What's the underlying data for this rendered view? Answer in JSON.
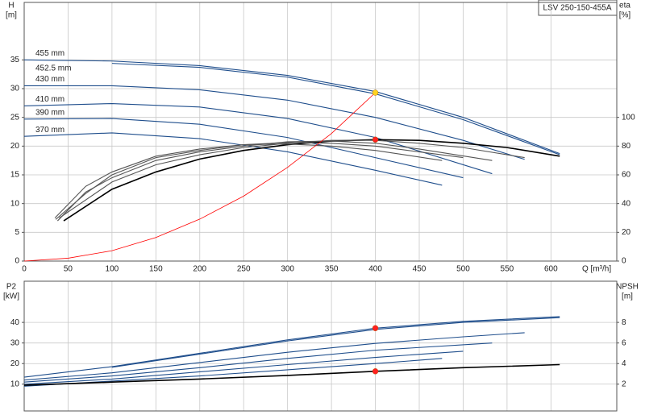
{
  "chart_data": [
    {
      "type": "line",
      "title": "LSV 250-150-455A",
      "ylabel": "H",
      "yunit": "[m]",
      "y2label": "eta",
      "y2unit": "[%]",
      "xlabel": "Q [m³/h]",
      "xlim": [
        0,
        675
      ],
      "xticks": [
        0,
        50,
        100,
        150,
        200,
        250,
        300,
        350,
        400,
        450,
        500,
        550,
        600
      ],
      "ylim": [
        0,
        45
      ],
      "yticks": [
        0,
        5,
        10,
        15,
        20,
        25,
        30,
        35
      ],
      "y2lim": [
        0,
        180
      ],
      "y2ticks": [
        0,
        20,
        40,
        60,
        80,
        100
      ],
      "grid": true,
      "series": [
        {
          "name": "455 mm",
          "color": "#1f4e8c",
          "x": [
            0,
            100,
            200,
            300,
            400,
            500,
            610
          ],
          "values": [
            35,
            34.8,
            34,
            32.3,
            29.5,
            25,
            18.7
          ]
        },
        {
          "name": "452.5 mm",
          "color": "#1f4e8c",
          "x": [
            100,
            200,
            300,
            400,
            500,
            610
          ],
          "values": [
            34.4,
            33.7,
            32,
            29.1,
            24.6,
            18.5
          ]
        },
        {
          "name": "430 mm",
          "color": "#1f4e8c",
          "x": [
            0,
            100,
            200,
            300,
            400,
            500,
            570
          ],
          "values": [
            30.5,
            30.5,
            29.8,
            28,
            25,
            21,
            17.7
          ]
        },
        {
          "name": "410 mm",
          "color": "#1f4e8c",
          "x": [
            0,
            100,
            200,
            300,
            400,
            533
          ],
          "values": [
            27,
            27.4,
            26.8,
            24.8,
            21.5,
            15.2
          ]
        },
        {
          "name": "390 mm",
          "color": "#1f4e8c",
          "x": [
            0,
            100,
            200,
            300,
            400,
            500
          ],
          "values": [
            24.7,
            24.8,
            23.8,
            21.5,
            18,
            14.5
          ]
        },
        {
          "name": "370 mm",
          "color": "#1f4e8c",
          "x": [
            0,
            100,
            200,
            300,
            400,
            476
          ],
          "values": [
            21.7,
            22.3,
            21.3,
            19,
            15.8,
            13.2
          ]
        },
        {
          "axis": "y2",
          "color": "#000000",
          "x": [
            45,
            100,
            150,
            200,
            250,
            300,
            350,
            400,
            450,
            500,
            550,
            610
          ],
          "values": [
            28,
            50,
            62,
            71,
            77,
            81,
            83.5,
            84.5,
            84,
            82,
            79,
            73
          ]
        },
        {
          "axis": "y2",
          "color": "#555555",
          "x": [
            40,
            100,
            150,
            200,
            250,
            300,
            350,
            400,
            450,
            500,
            570
          ],
          "values": [
            30,
            55,
            67,
            74,
            79,
            82,
            84,
            84,
            82,
            79,
            72
          ]
        },
        {
          "axis": "y2",
          "color": "#555555",
          "x": [
            38,
            70,
            100,
            150,
            200,
            250,
            300,
            350,
            400,
            450,
            533
          ],
          "values": [
            28,
            48,
            58,
            70,
            76,
            80,
            83,
            83.5,
            82,
            78,
            70
          ]
        },
        {
          "axis": "y2",
          "color": "#555555",
          "x": [
            36,
            70,
            100,
            150,
            200,
            250,
            300,
            350,
            400,
            500
          ],
          "values": [
            29,
            47,
            60,
            72,
            77,
            81,
            82.5,
            82,
            80,
            72
          ]
        },
        {
          "axis": "y2",
          "color": "#555555",
          "x": [
            35,
            70,
            100,
            150,
            200,
            250,
            300,
            350,
            400,
            476
          ],
          "values": [
            30,
            52,
            62,
            73,
            78,
            81,
            81.5,
            80,
            77,
            70
          ]
        },
        {
          "color": "#ff0000",
          "x": [
            0,
            50,
            100,
            150,
            200,
            250,
            300,
            350,
            400
          ],
          "values": [
            0,
            0.5,
            1.8,
            4.1,
            7.3,
            11.3,
            16.3,
            22.2,
            29.3
          ]
        }
      ],
      "points": [
        {
          "x": 400,
          "y": 29.3,
          "color": "#ffd21f"
        },
        {
          "x": 400,
          "y": 84.5,
          "axis": "y2",
          "color": "#ff2020"
        }
      ]
    },
    {
      "type": "line",
      "ylabel": "P2",
      "yunit": "[kW]",
      "y2label": "NPSH",
      "y2unit": "[m]",
      "xlim": [
        0,
        675
      ],
      "xticks": [
        0,
        50,
        100,
        150,
        200,
        250,
        300,
        350,
        400,
        450,
        500,
        550,
        600
      ],
      "ylim": [
        -3,
        60
      ],
      "yticks": [
        10,
        20,
        30,
        40
      ],
      "y2lim": [
        -0.6,
        12
      ],
      "y2ticks": [
        2,
        4,
        6,
        8
      ],
      "grid": true,
      "series": [
        {
          "color": "#1f4e8c",
          "x": [
            0,
            100,
            200,
            300,
            400,
            500,
            610
          ],
          "values": [
            13.4,
            18.5,
            25,
            31.5,
            37.2,
            40.5,
            42.8
          ]
        },
        {
          "color": "#1f4e8c",
          "x": [
            100,
            200,
            300,
            400,
            500,
            610
          ],
          "values": [
            18.2,
            24.6,
            31,
            36.6,
            40,
            42.3
          ]
        },
        {
          "color": "#1f4e8c",
          "x": [
            0,
            100,
            200,
            300,
            400,
            500,
            570
          ],
          "values": [
            12,
            15.5,
            20.5,
            25.5,
            29.8,
            33,
            35
          ]
        },
        {
          "color": "#1f4e8c",
          "x": [
            0,
            100,
            200,
            300,
            400,
            533
          ],
          "values": [
            11,
            14,
            18,
            22.5,
            26.5,
            30
          ]
        },
        {
          "color": "#1f4e8c",
          "x": [
            0,
            100,
            200,
            300,
            400,
            500
          ],
          "values": [
            10,
            12.5,
            16,
            19.5,
            23,
            26
          ]
        },
        {
          "color": "#1f4e8c",
          "x": [
            0,
            100,
            200,
            300,
            400,
            476
          ],
          "values": [
            9,
            11.5,
            14,
            17,
            20,
            22.5
          ]
        },
        {
          "axis": "y2",
          "color": "#000000",
          "x": [
            0,
            100,
            200,
            300,
            400,
            500,
            610
          ],
          "values": [
            1.9,
            2.2,
            2.5,
            2.85,
            3.25,
            3.6,
            3.9
          ]
        }
      ],
      "points": [
        {
          "x": 400,
          "y": 37.2,
          "color": "#ff2020"
        },
        {
          "x": 400,
          "y": 3.25,
          "axis": "y2",
          "color": "#ff2020"
        }
      ]
    }
  ]
}
